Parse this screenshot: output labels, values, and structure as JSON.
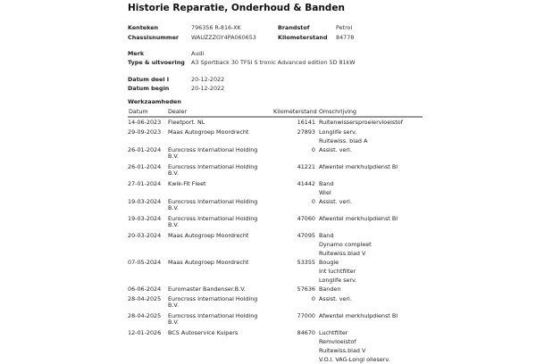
{
  "title": "Historie Reparatie, Onderhoud & Banden",
  "vehicle": {
    "kenteken_label": "Kenteken",
    "kenteken": "796356 R-816-XK",
    "chassis_label": "Chassisnummer",
    "chassis": "WAUZZZGY4PA060653",
    "brandstof_label": "Brandstof",
    "brandstof": "Petrol",
    "km_label": "Kilometerstand",
    "km": "84778",
    "merk_label": "Merk",
    "merk": "Audi",
    "type_label": "Type & uitvoering",
    "type": "A3 Sportback 30 TFSI S tronic Advanced edition 5D 81kW",
    "datum_deel_label": "Datum deel I",
    "datum_deel": "20-12-2022",
    "datum_begin_label": "Datum begin",
    "datum_begin": "20-12-2022"
  },
  "werkzaamheden": {
    "title": "Werkzaamheden",
    "columns": {
      "datum": "Datum",
      "dealer": "Dealer",
      "km": "Kilometerstand",
      "desc": "Omschrijving"
    },
    "rows": [
      {
        "date": "14-06-2023",
        "dealer": "Fleetport. NL",
        "km": "16141",
        "desc": [
          "Ruitenwissersproeiervloeistof"
        ]
      },
      {
        "date": "29-09-2023",
        "dealer": "Maas Autogroep Moordrecht",
        "km": "27893",
        "desc": [
          "Longlife serv.",
          "Ruitewiss. blad A"
        ]
      },
      {
        "date": "26-01-2024",
        "dealer": "Eurocross International Holding B.V.",
        "km": "0",
        "desc": [
          "Assist. verl."
        ]
      },
      {
        "date": "26-01-2024",
        "dealer": "Eurocross International Holding B.V.",
        "km": "41221",
        "desc": [
          "Afwentel merkhulpdienst BI"
        ]
      },
      {
        "date": "27-01-2024",
        "dealer": "Kwik-Fit Fleet",
        "km": "41442",
        "desc": [
          "Band",
          "Wiel"
        ]
      },
      {
        "date": "19-03-2024",
        "dealer": "Eurocross International Holding B.V.",
        "km": "0",
        "desc": [
          "Assist. verl."
        ]
      },
      {
        "date": "19-03-2024",
        "dealer": "Eurocross International Holding B.V.",
        "km": "47060",
        "desc": [
          "Afwentel merkhulpdienst BI"
        ]
      },
      {
        "date": "20-03-2024",
        "dealer": "Maas Autogroep Moordrecht",
        "km": "47095",
        "desc": [
          "Band",
          "Dynamo compleet",
          "Ruitewiss.blad V"
        ]
      },
      {
        "date": "07-05-2024",
        "dealer": "Maas Autogroep Moordrecht",
        "km": "53355",
        "desc": [
          "Bougie",
          "Int luchtfilter",
          "Longlife serv."
        ]
      },
      {
        "date": "06-06-2024",
        "dealer": "Euromaster Bandenser.B.V.",
        "km": "57636",
        "desc": [
          "Banden"
        ]
      },
      {
        "date": "28-04-2025",
        "dealer": "Eurocross International Holding B.V.",
        "km": "0",
        "desc": [
          "Assist. verl."
        ]
      },
      {
        "date": "28-04-2025",
        "dealer": "Eurocross International Holding B.V.",
        "km": "77000",
        "desc": [
          "Afwentel merkhulpdienst BI"
        ]
      },
      {
        "date": "12-01-2026",
        "dealer": "BCS Autoservice Kuipers",
        "km": "84670",
        "desc": [
          "Luchtfilter",
          "Remvloeistof",
          "Ruitewiss.blad V",
          "V.O.I. VAG-Longl olieserv."
        ]
      }
    ]
  }
}
